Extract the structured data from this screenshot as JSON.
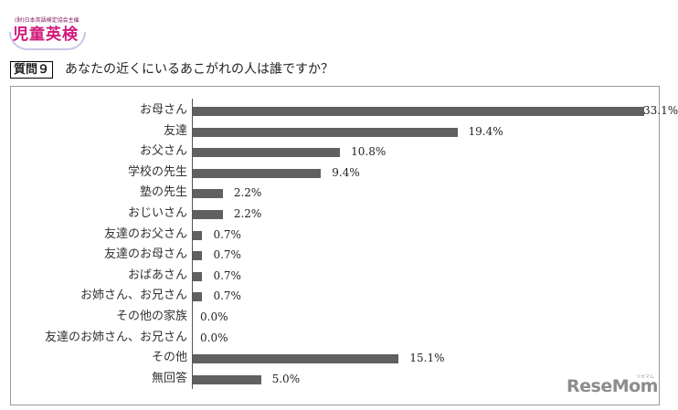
{
  "logo": {
    "subtitle": "(財)日本英語検定協会主催",
    "title": "児童英検"
  },
  "question": {
    "tag": "質問９",
    "text": "あなたの近くにいるあこがれの人は誰ですか？"
  },
  "watermark": {
    "brand": "ReseMom",
    "kana": "リセマム"
  },
  "chart_data": {
    "type": "bar",
    "orientation": "horizontal",
    "title": "あなたの近くにいるあこがれの人は誰ですか？",
    "xlabel": "",
    "ylabel": "",
    "categories": [
      "お母さん",
      "友達",
      "お父さん",
      "学校の先生",
      "塾の先生",
      "おじいさん",
      "友達のお父さん",
      "友達のお母さん",
      "おばあさん",
      "お姉さん、お兄さん",
      "その他の家族",
      "友達のお姉さん、お兄さん",
      "その他",
      "無回答"
    ],
    "values": [
      33.1,
      19.4,
      10.8,
      9.4,
      2.2,
      2.2,
      0.7,
      0.7,
      0.7,
      0.7,
      0.0,
      0.0,
      15.1,
      5.0
    ],
    "value_labels": [
      "33.1%",
      "19.4%",
      "10.8%",
      "9.4%",
      "2.2%",
      "2.2%",
      "0.7%",
      "0.7%",
      "0.7%",
      "0.7%",
      "0.0%",
      "0.0%",
      "15.1%",
      "5.0%"
    ],
    "unit": "%",
    "xlim": [
      0,
      33.1
    ],
    "grid": false,
    "legend": false,
    "bar_color": "#606060"
  }
}
